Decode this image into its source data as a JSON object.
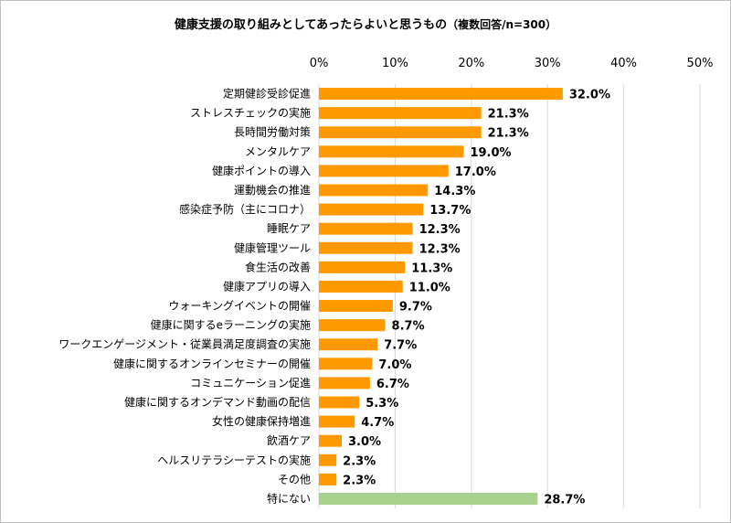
{
  "title": {
    "main": "健康支援の取り組みとしてあったらよいと思うもの",
    "sub": "（複数回答/n=300）"
  },
  "colors": {
    "primary": "#ff9900",
    "highlight": "#a9d18e",
    "grid": "#d9d9d9"
  },
  "chart_data": {
    "type": "bar",
    "orientation": "horizontal",
    "title": "健康支援の取り組みとしてあったらよいと思うもの（複数回答/n=300）",
    "xlim": [
      0,
      50
    ],
    "xticks": [
      "0%",
      "10%",
      "20%",
      "30%",
      "40%",
      "50%"
    ],
    "xtick_values": [
      0,
      10,
      20,
      30,
      40,
      50
    ],
    "x_axis_position": "top",
    "grid": true,
    "categories": [
      "定期健診受診促進",
      "ストレスチェックの実施",
      "長時間労働対策",
      "メンタルケア",
      "健康ポイントの導入",
      "運動機会の推進",
      "感染症予防（主にコロナ）",
      "睡眠ケア",
      "健康管理ツール",
      "食生活の改善",
      "健康アプリの導入",
      "ウォーキングイベントの開催",
      "健康に関するeラーニングの実施",
      "ワークエンゲージメント・従業員満足度調査の実施",
      "健康に関するオンラインセミナーの開催",
      "コミュニケーション促進",
      "健康に関するオンデマンド動画の配信",
      "女性の健康保持増進",
      "飲酒ケア",
      "ヘルスリテラシーテストの実施",
      "その他",
      "特にない"
    ],
    "values": [
      32.0,
      21.3,
      21.3,
      19.0,
      17.0,
      14.3,
      13.7,
      12.3,
      12.3,
      11.3,
      11.0,
      9.7,
      8.7,
      7.7,
      7.0,
      6.7,
      5.3,
      4.7,
      3.0,
      2.3,
      2.3,
      28.7
    ],
    "data_labels": [
      "32.0%",
      "21.3%",
      "21.3%",
      "19.0%",
      "17.0%",
      "14.3%",
      "13.7%",
      "12.3%",
      "12.3%",
      "11.3%",
      "11.0%",
      "9.7%",
      "8.7%",
      "7.7%",
      "7.0%",
      "6.7%",
      "5.3%",
      "4.7%",
      "3.0%",
      "2.3%",
      "2.3%",
      "28.7%"
    ],
    "highlight_index": 21
  }
}
